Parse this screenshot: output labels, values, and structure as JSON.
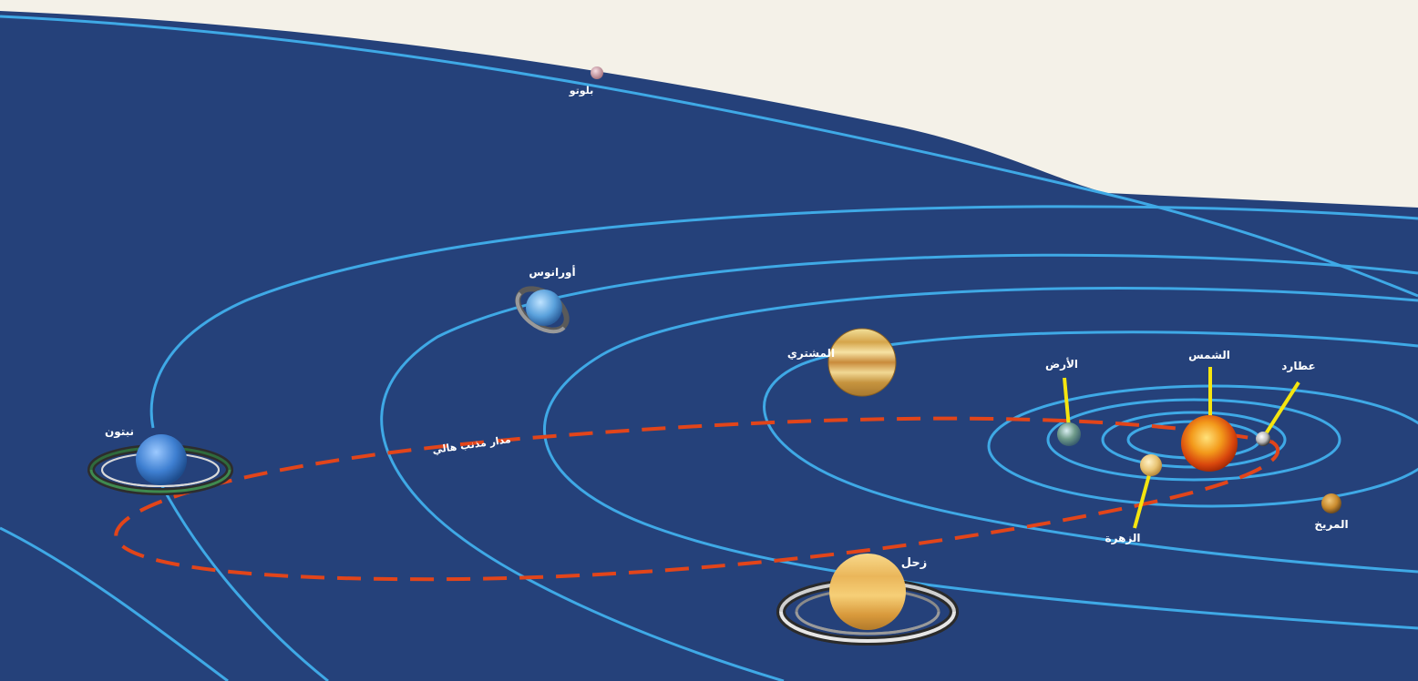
{
  "colors": {
    "page_background": "#f4f1e8",
    "space": "#25417a",
    "orbit": "#3fa9e6",
    "comet_orbit": "#e2451a",
    "pointer": "#f5e50f",
    "label": "#ffffff"
  },
  "labels": {
    "pluto": "بلوتو",
    "uranus": "أورانوس",
    "jupiter": "المشتري",
    "earth": "الأرض",
    "sun": "الشمس",
    "mercury": "عطارد",
    "neptune": "نبتون",
    "comet_orbit": "مدار مذنب هالي",
    "venus": "الزهرة",
    "mars": "المريخ",
    "saturn": "زحل"
  }
}
